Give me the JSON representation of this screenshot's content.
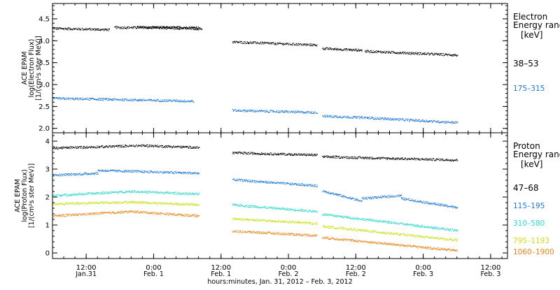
{
  "chart_data": [
    {
      "type": "scatter",
      "ylabel": [
        "ACE EPAM",
        "log(Electron Flux)",
        "[1/(cm²s ster MeV)]"
      ],
      "ylim": [
        1.9,
        4.85
      ],
      "yticks": [
        "2.0",
        "2.5",
        "3.0",
        "3.5",
        "4.0",
        "4.5"
      ],
      "legend_title": [
        "Electron",
        "Energy ranges",
        "[keV]"
      ],
      "series": [
        {
          "name": "38–53",
          "color": "#000000",
          "segments": [
            {
              "x": [
                0,
                10
              ],
              "y": [
                4.28,
                4.25
              ]
            },
            {
              "x": [
                11,
                26
              ],
              "y": [
                4.3,
                4.3
              ]
            },
            {
              "x": [
                15,
                26.5
              ],
              "y": [
                4.31,
                4.27
              ]
            },
            {
              "x": [
                32,
                47
              ],
              "y": [
                3.97,
                3.9
              ]
            },
            {
              "x": [
                48,
                55
              ],
              "y": [
                3.82,
                3.78
              ]
            },
            {
              "x": [
                55.5,
                72
              ],
              "y": [
                3.76,
                3.67
              ]
            }
          ]
        },
        {
          "name": "175–315",
          "color": "#1a78d8",
          "segments": [
            {
              "x": [
                0,
                10
              ],
              "y": [
                2.68,
                2.66
              ]
            },
            {
              "x": [
                10,
                25
              ],
              "y": [
                2.66,
                2.62
              ]
            },
            {
              "x": [
                32,
                47
              ],
              "y": [
                2.41,
                2.36
              ]
            },
            {
              "x": [
                48,
                56
              ],
              "y": [
                2.28,
                2.24
              ]
            },
            {
              "x": [
                56,
                72
              ],
              "y": [
                2.24,
                2.13
              ]
            }
          ]
        }
      ]
    },
    {
      "type": "scatter",
      "ylabel": [
        "ACE EPAM",
        "log(Proton Flux)",
        "[1/(cm²s ster MeV)]"
      ],
      "ylim": [
        -0.2,
        4.3
      ],
      "yticks": [
        "0",
        "1",
        "2",
        "3",
        "4"
      ],
      "legend_title": [
        "Proton",
        "Energy ranges",
        "[keV]"
      ],
      "series": [
        {
          "name": "47–68",
          "color": "#000000",
          "segments": [
            {
              "x": [
                0,
                16
              ],
              "y": [
                3.75,
                3.84
              ]
            },
            {
              "x": [
                16,
                26
              ],
              "y": [
                3.84,
                3.77
              ]
            },
            {
              "x": [
                32,
                47
              ],
              "y": [
                3.58,
                3.5
              ]
            },
            {
              "x": [
                48,
                72
              ],
              "y": [
                3.44,
                3.32
              ]
            }
          ]
        },
        {
          "name": "115–195",
          "color": "#1a78d8",
          "segments": [
            {
              "x": [
                0,
                8
              ],
              "y": [
                2.78,
                2.85
              ]
            },
            {
              "x": [
                8,
                26
              ],
              "y": [
                2.95,
                2.85
              ]
            },
            {
              "x": [
                32,
                47
              ],
              "y": [
                2.62,
                2.4
              ]
            },
            {
              "x": [
                48,
                55
              ],
              "y": [
                2.22,
                1.85
              ]
            },
            {
              "x": [
                55,
                62
              ],
              "y": [
                1.95,
                2.05
              ]
            },
            {
              "x": [
                62,
                72
              ],
              "y": [
                1.95,
                1.62
              ]
            }
          ]
        },
        {
          "name": "310–580",
          "color": "#29d9c9",
          "segments": [
            {
              "x": [
                0,
                14
              ],
              "y": [
                2.05,
                2.2
              ]
            },
            {
              "x": [
                14,
                26
              ],
              "y": [
                2.2,
                2.1
              ]
            },
            {
              "x": [
                32,
                47
              ],
              "y": [
                1.72,
                1.48
              ]
            },
            {
              "x": [
                48,
                72
              ],
              "y": [
                1.38,
                0.8
              ]
            }
          ]
        },
        {
          "name": "795–1193",
          "color": "#c8e012",
          "segments": [
            {
              "x": [
                0,
                14
              ],
              "y": [
                1.75,
                1.82
              ]
            },
            {
              "x": [
                14,
                26
              ],
              "y": [
                1.82,
                1.72
              ]
            },
            {
              "x": [
                32,
                47
              ],
              "y": [
                1.22,
                1.05
              ]
            },
            {
              "x": [
                48,
                72
              ],
              "y": [
                0.95,
                0.45
              ]
            }
          ]
        },
        {
          "name": "1060–1900",
          "color": "#e88417",
          "segments": [
            {
              "x": [
                0,
                14
              ],
              "y": [
                1.32,
                1.48
              ]
            },
            {
              "x": [
                14,
                26
              ],
              "y": [
                1.48,
                1.32
              ]
            },
            {
              "x": [
                32,
                47
              ],
              "y": [
                0.78,
                0.62
              ]
            },
            {
              "x": [
                48,
                72
              ],
              "y": [
                0.55,
                0.08
              ]
            }
          ]
        }
      ]
    }
  ],
  "x_axis": {
    "title": "hours:minutes, Jan. 31, 2012 – Feb.  3, 2012",
    "ticks": [
      {
        "x": 6,
        "l1": "12:00",
        "l2": "Jan.31"
      },
      {
        "x": 18,
        "l1": "0:00",
        "l2": "Feb. 1"
      },
      {
        "x": 30,
        "l1": "12:00",
        "l2": "Feb. 1"
      },
      {
        "x": 42,
        "l1": "0:00",
        "l2": "Feb. 2"
      },
      {
        "x": 54,
        "l1": "12:00",
        "l2": "Feb. 2"
      },
      {
        "x": 66,
        "l1": "0:00",
        "l2": "Feb. 3"
      },
      {
        "x": 78,
        "l1": "12:00",
        "l2": "Feb. 3"
      }
    ]
  }
}
